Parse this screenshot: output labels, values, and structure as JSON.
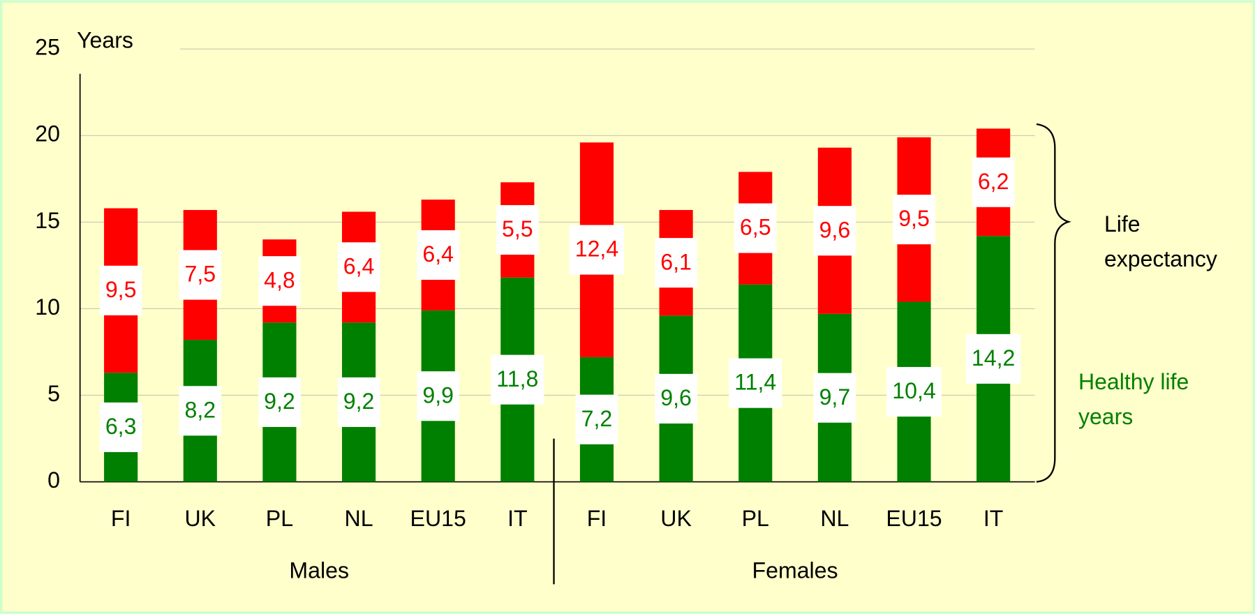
{
  "chart_data": {
    "type": "stacked_bar",
    "y_axis_label": "Years",
    "categories": [
      "FI",
      "UK",
      "PL",
      "NL",
      "EU15",
      "IT",
      "FI",
      "UK",
      "PL",
      "NL",
      "EU15",
      "IT"
    ],
    "groups": [
      {
        "label": "Males",
        "size": 6
      },
      {
        "label": "Females",
        "size": 6
      }
    ],
    "series": [
      {
        "name": "Healthy life years",
        "color": "#008000",
        "values": [
          6.3,
          8.2,
          9.2,
          9.2,
          9.9,
          11.8,
          7.2,
          9.6,
          11.4,
          9.7,
          10.4,
          14.2
        ],
        "value_labels": [
          "6,3",
          "8,2",
          "9,2",
          "9,2",
          "9,9",
          "11,8",
          "7,2",
          "9,6",
          "11,4",
          "9,7",
          "10,4",
          "14,2"
        ]
      },
      {
        "color": "#ff0000",
        "values": [
          9.5,
          7.5,
          4.8,
          6.4,
          6.4,
          5.5,
          12.4,
          6.1,
          6.5,
          9.6,
          9.5,
          6.2
        ],
        "value_labels": [
          "9,5",
          "7,5",
          "4,8",
          "6,4",
          "6,4",
          "5,5",
          "12,4",
          "6,1",
          "6,5",
          "9,6",
          "9,5",
          "6,2"
        ]
      }
    ],
    "annotation": "Life expectancy",
    "ylim": [
      0,
      25
    ],
    "yticks": [
      0,
      5,
      10,
      15,
      20,
      25
    ],
    "grid": true
  }
}
